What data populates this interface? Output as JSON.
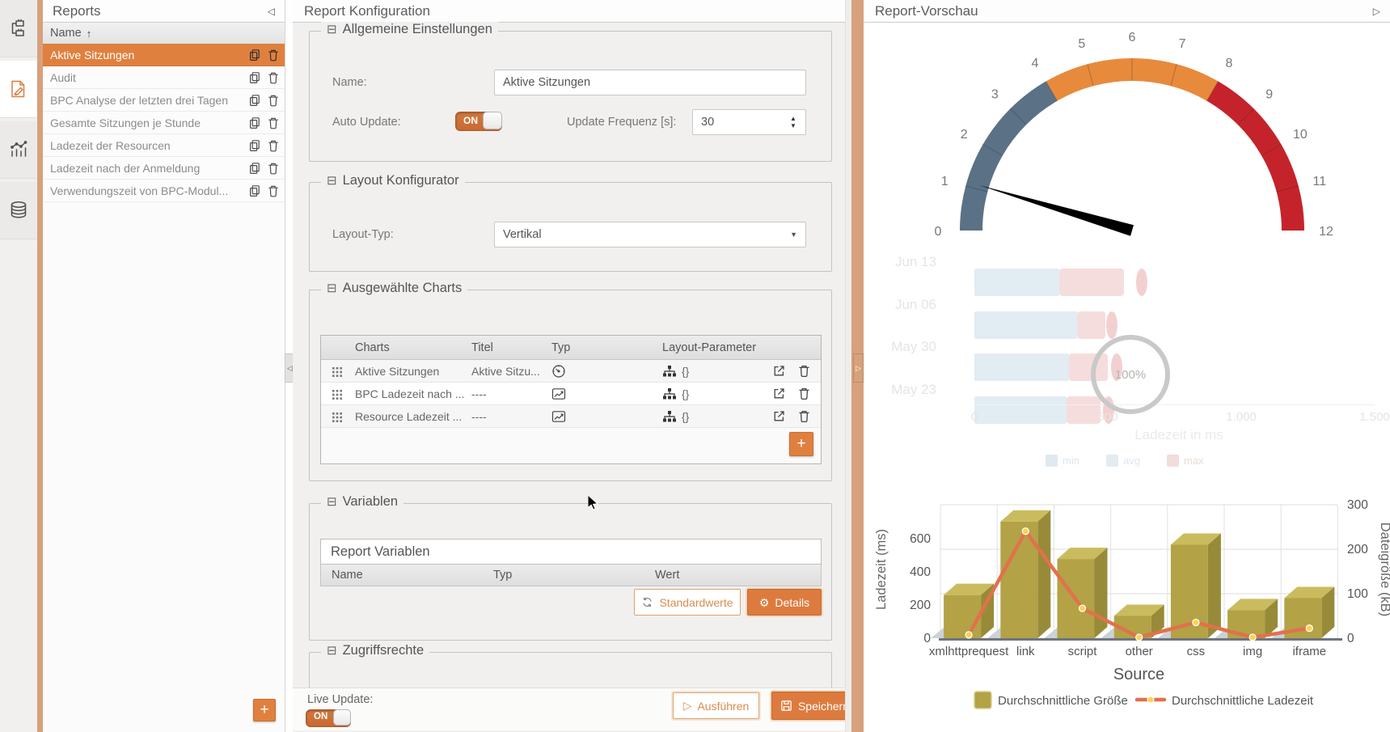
{
  "icons": {
    "collapse_left": "◁",
    "collapse_right": "▷",
    "sort_asc": "↑",
    "dropdown": "▼",
    "spinner_up": "▲",
    "spinner_down": "▼",
    "section_collapse": "⊟",
    "plus": "+",
    "gear_big": "⚙",
    "gear_small": "⚙",
    "play": "▷",
    "splitter_handle_right": "▷",
    "rail_icons": [
      "sitemap-icon",
      "report-edit-icon",
      "chart-icon",
      "database-icon"
    ]
  },
  "accent_colors": {
    "orange": "#dd7b3e",
    "selected_row": "#e0803f",
    "splitter_tan": "#d6a17c"
  },
  "reports_panel": {
    "title": "Reports",
    "column_header": "Name",
    "sort_glyph": "↑",
    "add_label": "+",
    "items": [
      {
        "label": "Aktive Sitzungen",
        "selected": true
      },
      {
        "label": "Audit",
        "selected": false
      },
      {
        "label": "BPC Analyse der letzten drei Tagen",
        "selected": false
      },
      {
        "label": "Gesamte Sitzungen je Stunde",
        "selected": false
      },
      {
        "label": "Ladezeit der Resourcen",
        "selected": false
      },
      {
        "label": "Ladezeit nach der Anmeldung",
        "selected": false
      },
      {
        "label": "Verwendungszeit von BPC-Modul...",
        "selected": false
      }
    ]
  },
  "config_panel": {
    "title": "Report Konfiguration",
    "sections": {
      "general": {
        "title": "Allgemeine Einstellungen",
        "name_label": "Name:",
        "name_value": "Aktive Sitzungen",
        "auto_update_label": "Auto Update:",
        "auto_update_state": "ON",
        "frequency_label": "Update Frequenz [s]:",
        "frequency_value": "30"
      },
      "layout": {
        "title": "Layout Konfigurator",
        "type_label": "Layout-Typ:",
        "type_value": "Vertikal"
      },
      "charts": {
        "title": "Ausgewählte Charts",
        "columns": [
          "Charts",
          "Titel",
          "Typ",
          "Layout-Parameter"
        ],
        "add_label": "+",
        "rows": [
          {
            "chart": "Aktive Sitzungen",
            "titel": "Aktive Sitzu...",
            "typ": "gauge",
            "layout_param": "{}"
          },
          {
            "chart": "BPC Ladezeit nach ...",
            "titel": "----",
            "typ": "line",
            "layout_param": "{}"
          },
          {
            "chart": "Resource Ladezeit ...",
            "titel": "----",
            "typ": "line",
            "layout_param": "{}"
          }
        ]
      },
      "variables": {
        "title": "Variablen",
        "box_title": "Report Variablen",
        "columns": [
          "Name",
          "Typ",
          "Wert"
        ],
        "default_button": "Standardwerte",
        "details_button": "Details"
      },
      "access": {
        "title": "Zugriffsrechte"
      }
    },
    "footer": {
      "live_update_label": "Live Update:",
      "live_update_state": "ON",
      "run_button": "Ausführen",
      "save_button": "Speichern"
    }
  },
  "preview_panel": {
    "title": "Report-Vorschau",
    "loading_label": "100%"
  },
  "chart_data": [
    {
      "type": "gauge",
      "min": 0,
      "max": 12,
      "value": 1.1,
      "tick_labels": [
        "0",
        "1",
        "2",
        "3",
        "4",
        "5",
        "6",
        "7",
        "8",
        "9",
        "10",
        "11",
        "12"
      ],
      "segments": [
        {
          "from": 0,
          "to": 4,
          "color": "#5b7186"
        },
        {
          "from": 4,
          "to": 8,
          "color": "#e88a3c"
        },
        {
          "from": 8,
          "to": 12,
          "color": "#c5232b"
        }
      ],
      "needle_color": "#000000"
    },
    {
      "type": "bar",
      "orientation": "horizontal",
      "state": "loading",
      "progress_label": "100%",
      "categories": [
        "Jun 13",
        "Jun 06",
        "May 30",
        "May 23"
      ],
      "series": [
        {
          "name": "min",
          "values": [
            355,
            430,
            395,
            385
          ],
          "color": "#e2ecf3"
        },
        {
          "name": "avg",
          "values": [
            625,
            545,
            555,
            525
          ],
          "color": "#f6dddd"
        },
        {
          "name": "max",
          "values": [
            700,
            575,
            595,
            560
          ],
          "color": "#f3d0d0"
        }
      ],
      "x_ticks": [
        "0",
        "500",
        "1.000",
        "1.500"
      ],
      "xlim": [
        0,
        1670
      ],
      "xlabel": "Ladezeit in ms",
      "legend": [
        "min",
        "avg",
        "max"
      ]
    },
    {
      "type": "bar+line",
      "categories": [
        "xmlhttprequest",
        "link",
        "script",
        "other",
        "css",
        "img",
        "iframe"
      ],
      "series": [
        {
          "name": "Durchschnittliche Größe",
          "type": "bar",
          "axis": "right",
          "color": "#b3a246",
          "values": [
            97,
            262,
            178,
            50,
            210,
            63,
            90
          ]
        },
        {
          "name": "Durchschnittliche Ladezeit",
          "type": "line",
          "axis": "left",
          "color": "#e2714b",
          "values": [
            20,
            645,
            180,
            5,
            95,
            5,
            60
          ]
        }
      ],
      "xlabel": "Source",
      "ylabel_left": "Ladezeit (ms)",
      "ylabel_right": "Dateigröße (kB)",
      "left_ticks": [
        0,
        200,
        400,
        600
      ],
      "right_ticks": [
        0,
        100,
        200,
        300
      ],
      "left_axis_max": 805,
      "right_axis_max": 300,
      "grid": true,
      "legend_position": "bottom"
    }
  ]
}
